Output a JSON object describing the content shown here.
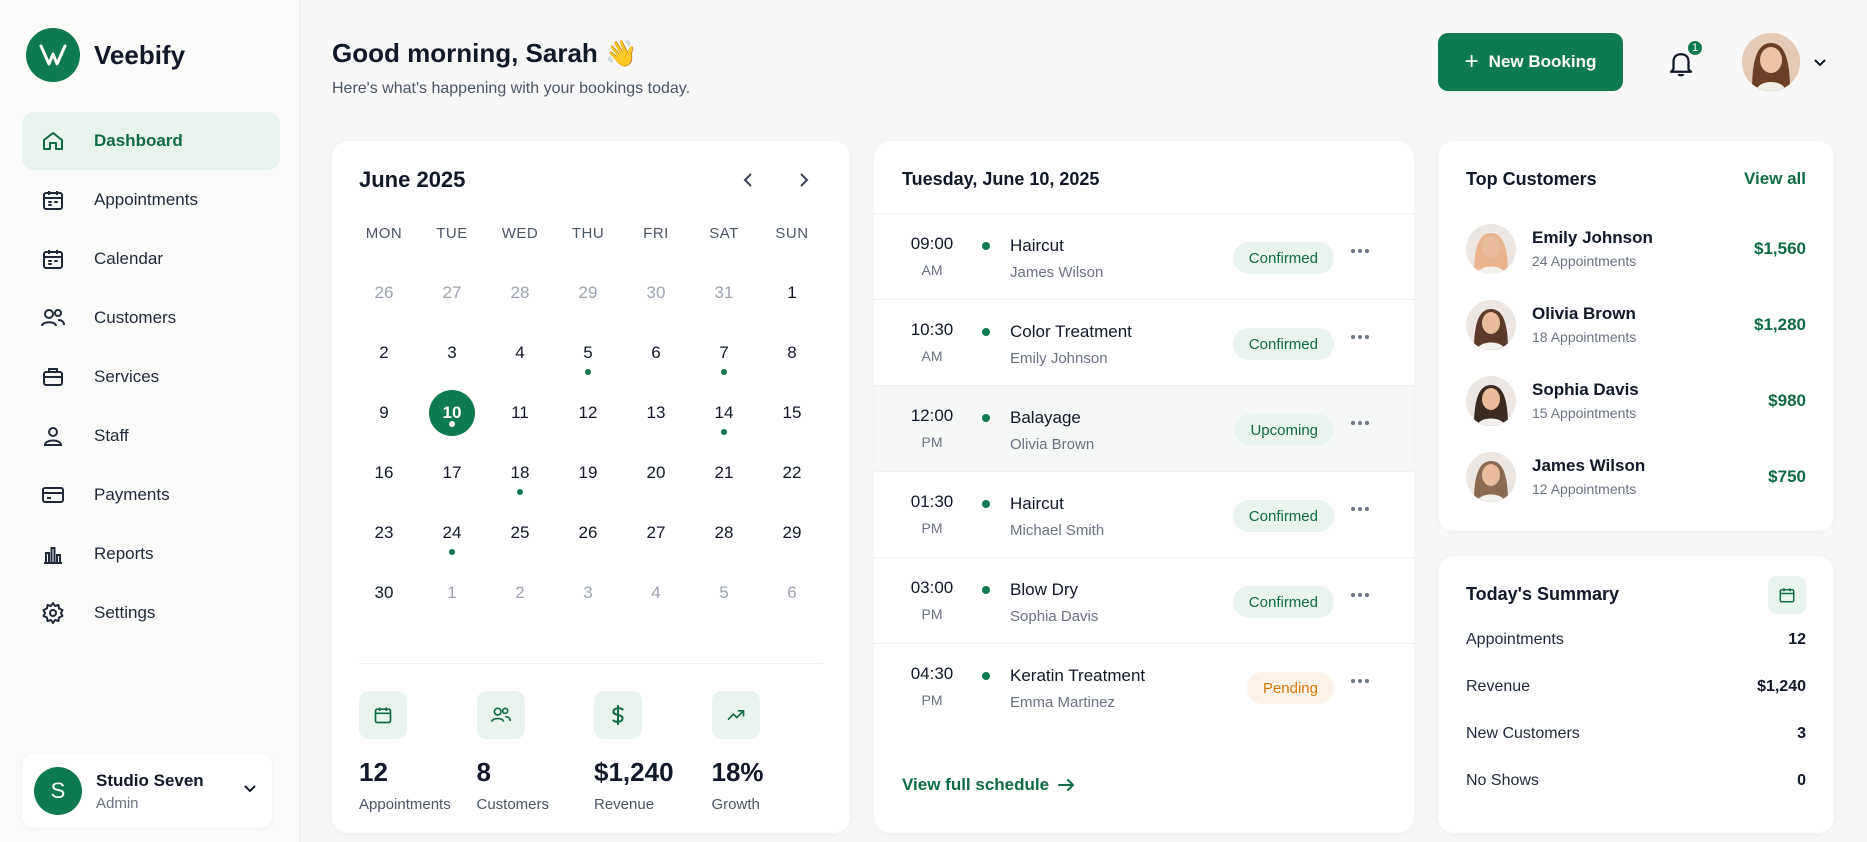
{
  "brand": {
    "name": "Veebify",
    "accent": "#0f7a4f"
  },
  "sidebar": {
    "items": [
      {
        "label": "Dashboard",
        "icon": "home-icon",
        "active": true
      },
      {
        "label": "Appointments",
        "icon": "calendar-icon"
      },
      {
        "label": "Calendar",
        "icon": "calendar-icon"
      },
      {
        "label": "Customers",
        "icon": "users-icon"
      },
      {
        "label": "Services",
        "icon": "briefcase-icon"
      },
      {
        "label": "Staff",
        "icon": "user-icon"
      },
      {
        "label": "Payments",
        "icon": "card-icon"
      },
      {
        "label": "Reports",
        "icon": "bar-chart-icon"
      },
      {
        "label": "Settings",
        "icon": "gear-icon"
      }
    ],
    "studio": {
      "initial": "S",
      "name": "Studio Seven",
      "role": "Admin"
    }
  },
  "header": {
    "greeting": "Good morning, Sarah 👋",
    "subtitle": "Here's what's happening with your bookings today.",
    "new_booking_label": "New Booking",
    "notification_count": "1"
  },
  "calendar": {
    "month_label": "June 2025",
    "weekdays": [
      "MON",
      "TUE",
      "WED",
      "THU",
      "FRI",
      "SAT",
      "SUN"
    ],
    "days": [
      {
        "d": "26",
        "muted": true
      },
      {
        "d": "27",
        "muted": true
      },
      {
        "d": "28",
        "muted": true
      },
      {
        "d": "29",
        "muted": true
      },
      {
        "d": "30",
        "muted": true
      },
      {
        "d": "31",
        "muted": true
      },
      {
        "d": "1"
      },
      {
        "d": "2"
      },
      {
        "d": "3"
      },
      {
        "d": "4"
      },
      {
        "d": "5",
        "dot": true
      },
      {
        "d": "6"
      },
      {
        "d": "7",
        "dot": true
      },
      {
        "d": "8"
      },
      {
        "d": "9"
      },
      {
        "d": "10",
        "selected": true,
        "dot": true
      },
      {
        "d": "11"
      },
      {
        "d": "12"
      },
      {
        "d": "13"
      },
      {
        "d": "14",
        "dot": true
      },
      {
        "d": "15"
      },
      {
        "d": "16"
      },
      {
        "d": "17"
      },
      {
        "d": "18",
        "dot": true
      },
      {
        "d": "19"
      },
      {
        "d": "20"
      },
      {
        "d": "21"
      },
      {
        "d": "22"
      },
      {
        "d": "23"
      },
      {
        "d": "24",
        "dot": true
      },
      {
        "d": "25"
      },
      {
        "d": "26"
      },
      {
        "d": "27"
      },
      {
        "d": "28"
      },
      {
        "d": "29"
      },
      {
        "d": "30"
      },
      {
        "d": "1",
        "muted": true
      },
      {
        "d": "2",
        "muted": true
      },
      {
        "d": "3",
        "muted": true
      },
      {
        "d": "4",
        "muted": true
      },
      {
        "d": "5",
        "muted": true
      },
      {
        "d": "6",
        "muted": true
      }
    ],
    "stats": [
      {
        "icon": "calendar-icon",
        "value": "12",
        "label": "Appointments"
      },
      {
        "icon": "users-icon",
        "value": "8",
        "label": "Customers"
      },
      {
        "icon": "dollar-icon",
        "value": "$1,240",
        "label": "Revenue"
      },
      {
        "icon": "trending-up-icon",
        "value": "18%",
        "label": "Growth"
      }
    ]
  },
  "schedule": {
    "date_label": "Tuesday, June 10, 2025",
    "appointments": [
      {
        "time": "09:00",
        "ampm": "AM",
        "service": "Haircut",
        "client": "James Wilson",
        "status": "Confirmed",
        "kind": "confirmed"
      },
      {
        "time": "10:30",
        "ampm": "AM",
        "service": "Color Treatment",
        "client": "Emily Johnson",
        "status": "Confirmed",
        "kind": "confirmed"
      },
      {
        "time": "12:00",
        "ampm": "PM",
        "service": "Balayage",
        "client": "Olivia Brown",
        "status": "Upcoming",
        "kind": "upcoming",
        "highlight": true
      },
      {
        "time": "01:30",
        "ampm": "PM",
        "service": "Haircut",
        "client": "Michael Smith",
        "status": "Confirmed",
        "kind": "confirmed"
      },
      {
        "time": "03:00",
        "ampm": "PM",
        "service": "Blow Dry",
        "client": "Sophia Davis",
        "status": "Confirmed",
        "kind": "confirmed"
      },
      {
        "time": "04:30",
        "ampm": "PM",
        "service": "Keratin Treatment",
        "client": "Emma Martinez",
        "status": "Pending",
        "kind": "pending"
      }
    ],
    "view_full_label": "View full schedule"
  },
  "top_customers": {
    "title": "Top Customers",
    "view_all_label": "View all",
    "customers": [
      {
        "name": "Emily Johnson",
        "appointments": "24 Appointments",
        "amount": "$1,560",
        "avatar_color": "#e8b48f"
      },
      {
        "name": "Olivia Brown",
        "appointments": "18 Appointments",
        "amount": "$1,280",
        "avatar_color": "#5b3a2c"
      },
      {
        "name": "Sophia Davis",
        "appointments": "15 Appointments",
        "amount": "$980",
        "avatar_color": "#3b2a22"
      },
      {
        "name": "James Wilson",
        "appointments": "12 Appointments",
        "amount": "$750",
        "avatar_color": "#8a6a52"
      }
    ]
  },
  "summary": {
    "title": "Today's Summary",
    "rows": [
      {
        "label": "Appointments",
        "value": "12"
      },
      {
        "label": "Revenue",
        "value": "$1,240"
      },
      {
        "label": "New Customers",
        "value": "3"
      },
      {
        "label": "No Shows",
        "value": "0"
      }
    ]
  }
}
